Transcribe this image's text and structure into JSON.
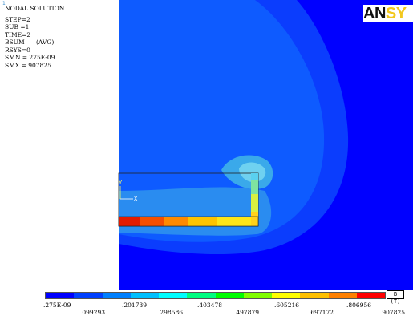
{
  "window": {
    "corner_mark": "1",
    "logo_dark": "AN",
    "logo_light": "SY"
  },
  "legend": {
    "title": "NODAL SOLUTION",
    "lines": [
      "STEP=2",
      "SUB =1",
      "TIME=2",
      "BSUM      (AVG)",
      "RSYS=0",
      "SMN =.275E-09",
      "SMX =.907825"
    ]
  },
  "axis_triad": {
    "y_label": "Y",
    "x_label": "X"
  },
  "colorbar": {
    "units_label": "B (T)",
    "colors": [
      "#0000ff",
      "#0040ff",
      "#0080ff",
      "#00c0ff",
      "#00ffff",
      "#00ff80",
      "#00ff00",
      "#80ff00",
      "#ffff00",
      "#ffc000",
      "#ff8000",
      "#ff0000"
    ],
    "upper_labels": [
      ".275E-09",
      ".201739",
      ".403478",
      ".605216",
      ".806956"
    ],
    "lower_labels": [
      ".099293",
      ".298586",
      ".497879",
      ".697172",
      ".907825"
    ]
  },
  "colors": {
    "background": "#0000ff",
    "field_outer": "#0044ff",
    "field_mid": "#0a6fff",
    "field_hot": "#33aaff"
  }
}
